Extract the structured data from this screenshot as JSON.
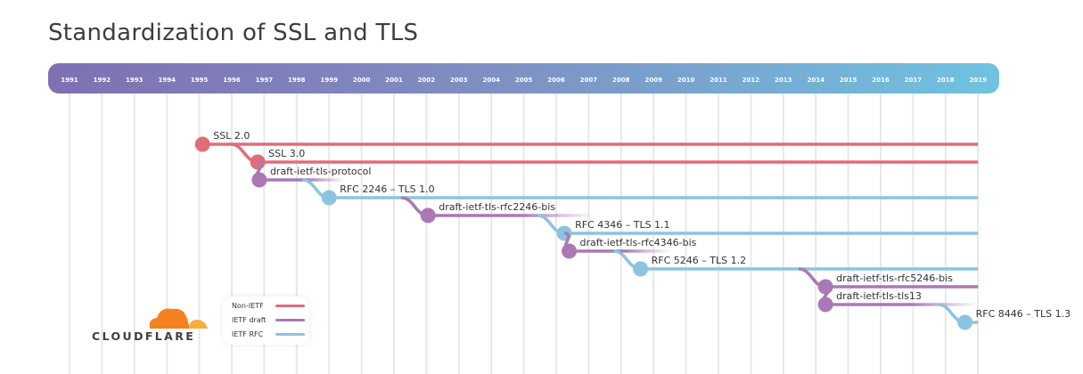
{
  "title": "Standardization of SSL and TLS",
  "colors": {
    "non_ietf": "#e06d79",
    "ietf_draft": "#a979b5",
    "ietf_rfc": "#8bc4e1"
  },
  "chart_data": {
    "type": "timeline",
    "years": [
      1991,
      1992,
      1993,
      1994,
      1995,
      1996,
      1997,
      1998,
      1999,
      2000,
      2001,
      2002,
      2003,
      2004,
      2005,
      2006,
      2007,
      2008,
      2009,
      2010,
      2011,
      2012,
      2013,
      2014,
      2015,
      2016,
      2017,
      2018,
      2019
    ],
    "events": [
      {
        "label": "SSL 2.0",
        "kind": "non_ietf",
        "start": 1995.1,
        "end": 2019,
        "fade": false
      },
      {
        "label": "SSL 3.0",
        "kind": "non_ietf",
        "start": 1996.8,
        "end": 2019,
        "fade": false
      },
      {
        "label": "draft-ietf-tls-protocol",
        "kind": "ietf_draft",
        "start": 1996.85,
        "end": 1999.5,
        "fade": true
      },
      {
        "label": "RFC 2246 – TLS 1.0",
        "kind": "ietf_rfc",
        "start": 1999.0,
        "end": 2019,
        "fade": false
      },
      {
        "label": "draft-ietf-tls-rfc2246-bis",
        "kind": "ietf_draft",
        "start": 2002.05,
        "end": 2007.2,
        "fade": true
      },
      {
        "label": "RFC 4346 – TLS 1.1",
        "kind": "ietf_rfc",
        "start": 2006.25,
        "end": 2019,
        "fade": false
      },
      {
        "label": "draft-ietf-tls-rfc4346-bis",
        "kind": "ietf_draft",
        "start": 2006.4,
        "end": 2009.5,
        "fade": true
      },
      {
        "label": "RFC 5246 – TLS 1.2",
        "kind": "ietf_rfc",
        "start": 2008.6,
        "end": 2019,
        "fade": false
      },
      {
        "label": "draft-ietf-tls-rfc5246-bis",
        "kind": "ietf_draft",
        "start": 2014.3,
        "end": 2019,
        "fade": false
      },
      {
        "label": "draft-ietf-tls-tls13",
        "kind": "ietf_draft",
        "start": 2014.3,
        "end": 2019,
        "fade": true
      },
      {
        "label": "RFC 8446 – TLS 1.3",
        "kind": "ietf_rfc",
        "start": 2018.6,
        "end": 2019,
        "fade": false
      }
    ],
    "legend": [
      {
        "label": "Non-IETF",
        "kind": "non_ietf"
      },
      {
        "label": "IETF draft",
        "kind": "ietf_draft"
      },
      {
        "label": "IETF RFC",
        "kind": "ietf_rfc"
      }
    ]
  },
  "logo": "CLOUDFLARE"
}
